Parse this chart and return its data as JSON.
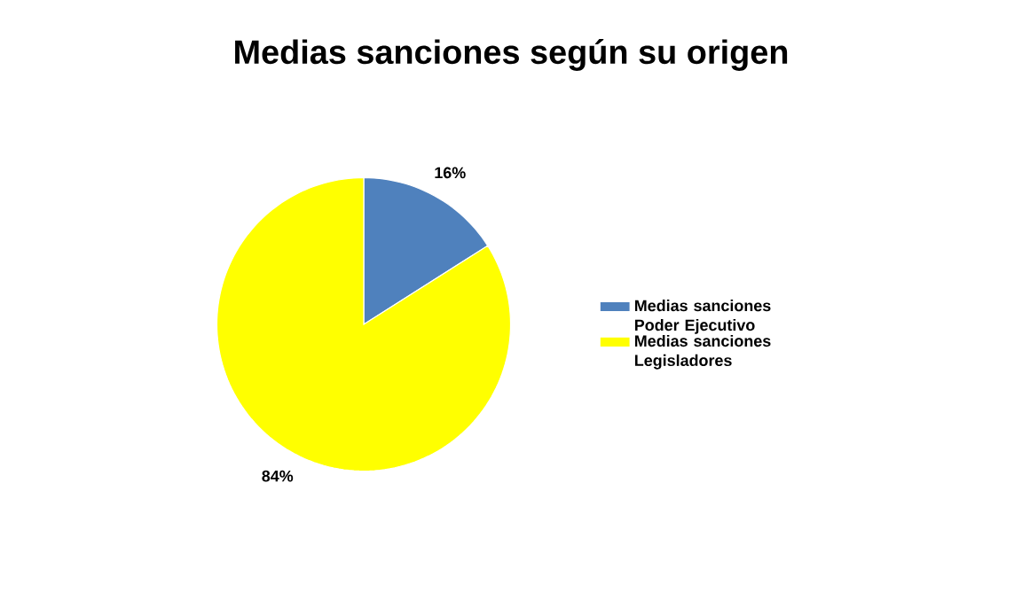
{
  "chart_data": {
    "type": "pie",
    "title": "Medias sanciones según su origen",
    "categories": [
      "Medias sanciones Poder Ejecutivo",
      "Medias sanciones Legisladores"
    ],
    "values": [
      16,
      84
    ],
    "colors": [
      "#4f81bd",
      "#ffff00"
    ],
    "value_labels": [
      "16%",
      "84%"
    ],
    "legend": "right"
  }
}
